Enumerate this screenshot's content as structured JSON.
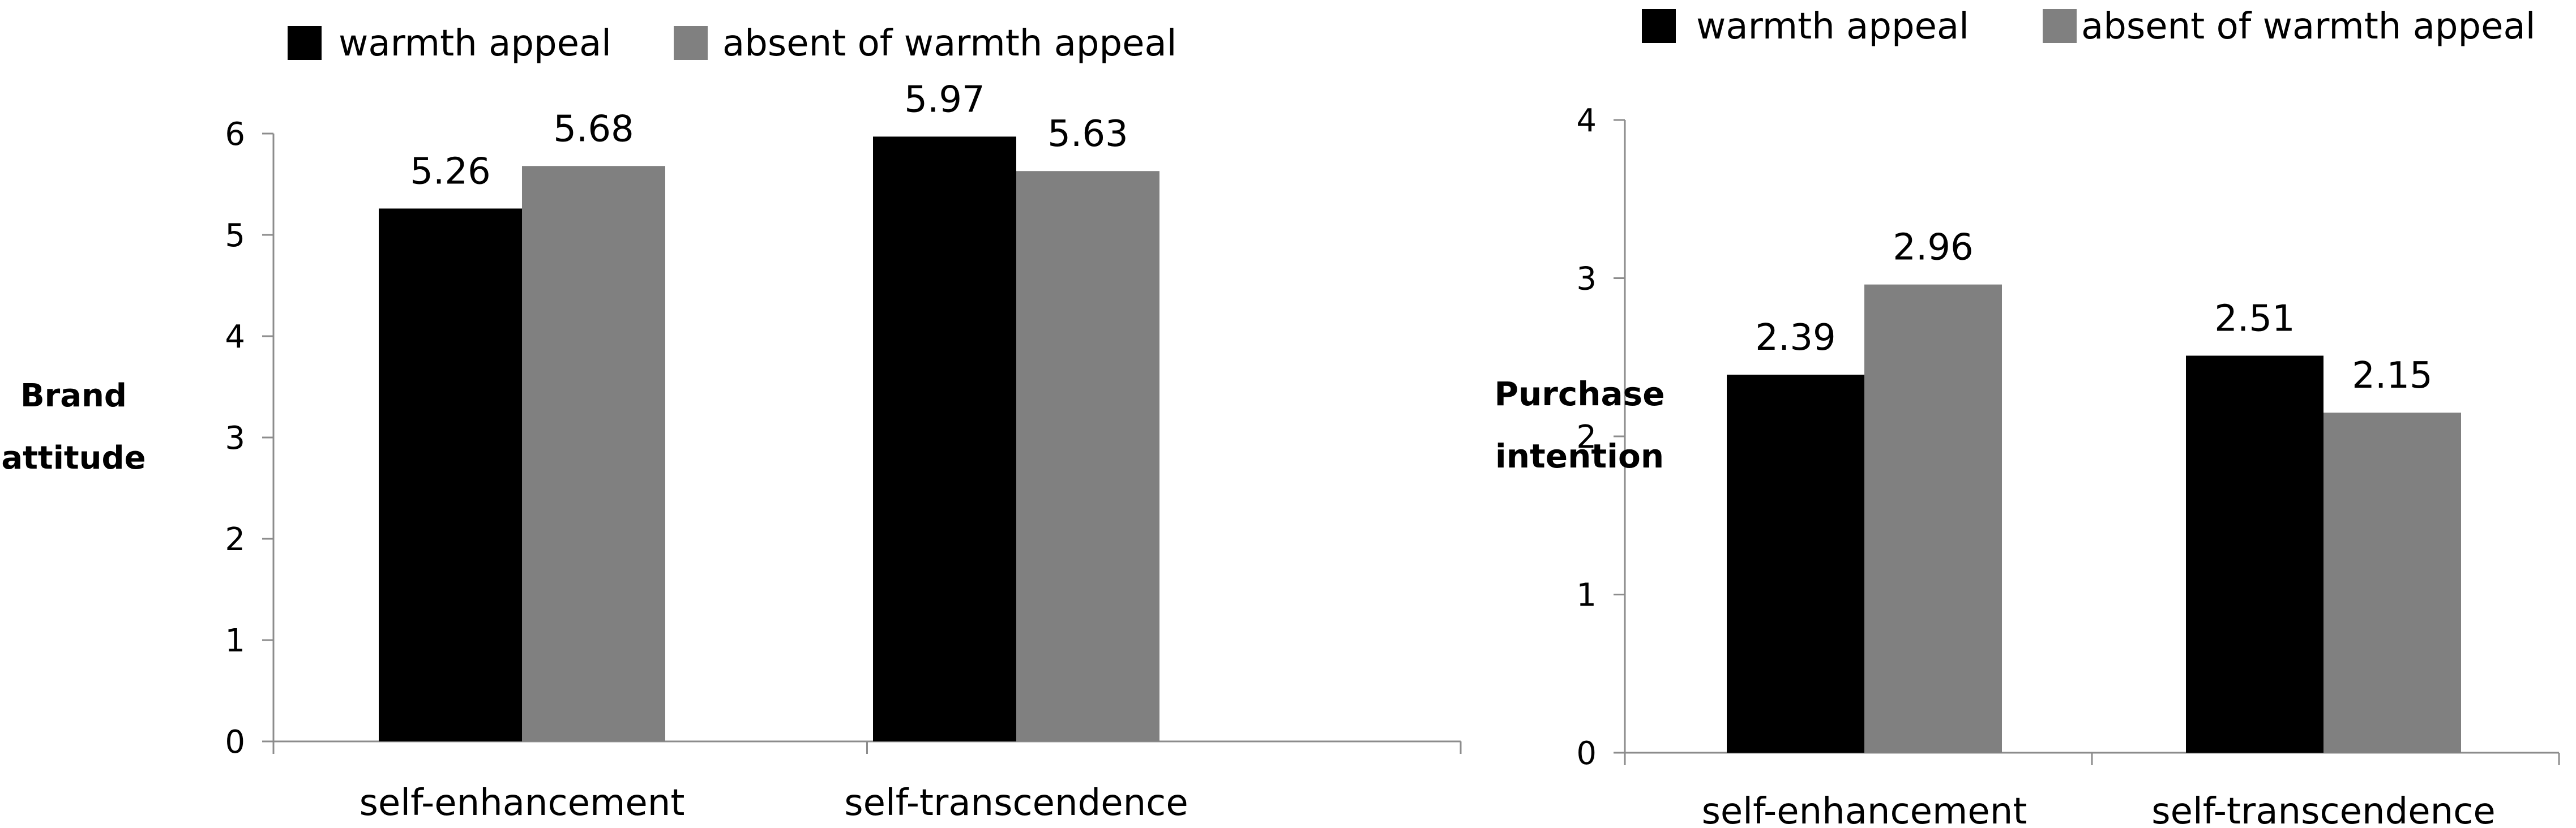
{
  "chart_data": [
    {
      "type": "bar",
      "title": "",
      "xlabel": "",
      "ylabel": "Brand attitude",
      "ylim": [
        0,
        6
      ],
      "yticks": [
        0,
        1,
        2,
        3,
        4,
        5,
        6
      ],
      "grid": false,
      "legend_position": "top",
      "categories": [
        "self-enhancement",
        "self-transcendence"
      ],
      "series": [
        {
          "name": "warmth appeal",
          "color": "#000000",
          "values": [
            5.26,
            5.97
          ],
          "labels": [
            "5.26",
            "5.97"
          ]
        },
        {
          "name": "absent of warmth appeal",
          "color": "#808080",
          "values": [
            5.68,
            5.63
          ],
          "labels": [
            "5.68",
            "5.63"
          ]
        }
      ]
    },
    {
      "type": "bar",
      "title": "",
      "xlabel": "",
      "ylabel": "Purchase intention",
      "ylim": [
        0,
        4
      ],
      "yticks": [
        0,
        1,
        2,
        3,
        4
      ],
      "grid": false,
      "legend_position": "top",
      "categories": [
        "self-enhancement",
        "self-transcendence"
      ],
      "series": [
        {
          "name": "warmth appeal",
          "color": "#000000",
          "values": [
            2.39,
            2.51
          ],
          "labels": [
            "2.39",
            "2.51"
          ]
        },
        {
          "name": "absent of warmth appeal",
          "color": "#808080",
          "values": [
            2.96,
            2.15
          ],
          "labels": [
            "2.96",
            "2.15"
          ]
        }
      ]
    }
  ]
}
